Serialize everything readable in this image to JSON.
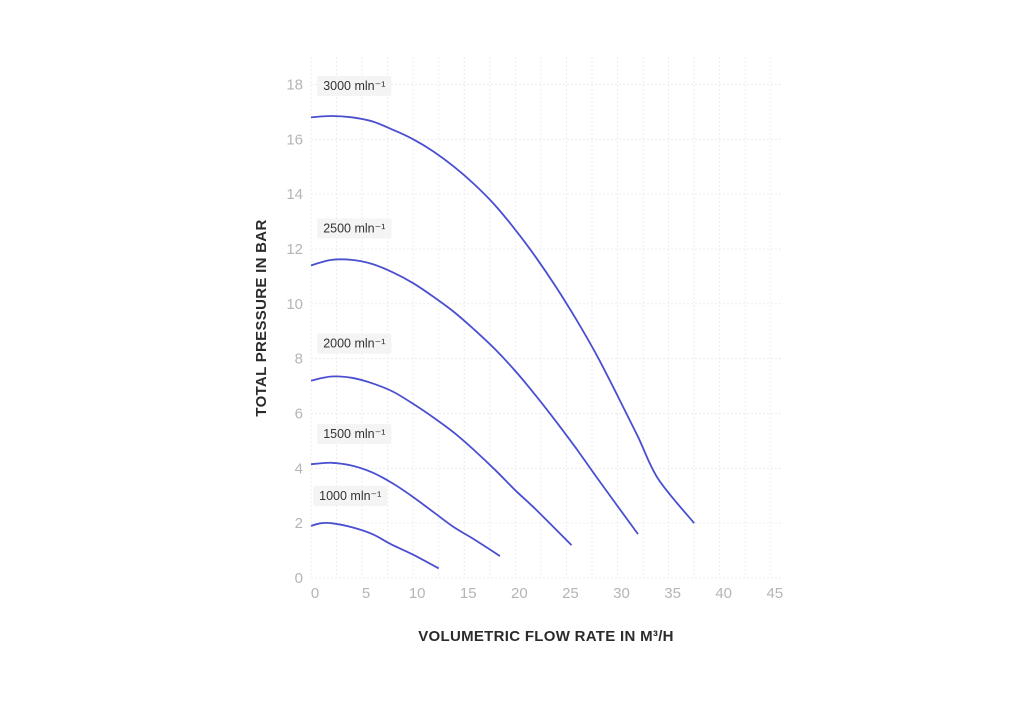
{
  "chart_data": {
    "type": "line",
    "title": "",
    "xlabel": "VOLUMETRIC FLOW RATE IN M³/H",
    "ylabel": "TOTAL PRESSURE IN BAR",
    "xlim": [
      0,
      46
    ],
    "ylim": [
      0,
      19
    ],
    "xticks": [
      0,
      5,
      10,
      15,
      20,
      25,
      30,
      35,
      40,
      45
    ],
    "yticks": [
      0,
      2,
      4,
      6,
      8,
      10,
      12,
      14,
      16,
      18
    ],
    "grid": true,
    "series": [
      {
        "name": "1000 mln⁻¹",
        "color": "#4a4fd0",
        "x": [
          0,
          1,
          2,
          4,
          6,
          8,
          10,
          12.5
        ],
        "y": [
          1.9,
          2.0,
          2.0,
          1.85,
          1.6,
          1.2,
          0.85,
          0.35
        ]
      },
      {
        "name": "1500 mln⁻¹",
        "color": "#4a4fd0",
        "x": [
          0,
          2,
          4,
          6,
          8,
          10,
          12,
          14,
          16,
          18.5
        ],
        "y": [
          4.15,
          4.2,
          4.1,
          3.85,
          3.45,
          2.95,
          2.4,
          1.85,
          1.4,
          0.8
        ]
      },
      {
        "name": "2000 mln⁻¹",
        "color": "#4a4fd0",
        "x": [
          0,
          2,
          4,
          6,
          8,
          10,
          12,
          14,
          16,
          18,
          20,
          22,
          25.5
        ],
        "y": [
          7.2,
          7.35,
          7.3,
          7.1,
          6.8,
          6.35,
          5.85,
          5.3,
          4.65,
          3.95,
          3.2,
          2.5,
          1.2
        ]
      },
      {
        "name": "2500 mln⁻¹",
        "color": "#4a4fd0",
        "x": [
          0,
          2,
          4,
          6,
          8,
          10,
          12,
          14,
          16,
          18,
          20,
          22,
          24,
          26,
          28,
          32
        ],
        "y": [
          11.4,
          11.6,
          11.6,
          11.45,
          11.15,
          10.75,
          10.25,
          9.7,
          9.05,
          8.35,
          7.55,
          6.65,
          5.7,
          4.7,
          3.65,
          1.6
        ]
      },
      {
        "name": "3000 mln⁻¹",
        "color": "#4a4fd0",
        "x": [
          0,
          2,
          4,
          6,
          8,
          10,
          12,
          14,
          16,
          18,
          20,
          22,
          24,
          26,
          28,
          30,
          32,
          34,
          37.5
        ],
        "y": [
          16.8,
          16.85,
          16.8,
          16.65,
          16.35,
          16.0,
          15.55,
          15.0,
          14.35,
          13.6,
          12.7,
          11.7,
          10.6,
          9.4,
          8.1,
          6.65,
          5.15,
          3.6,
          2.0
        ]
      }
    ],
    "annotations": [
      {
        "text": "3000 mln⁻¹",
        "x": 1.0,
        "y": 17.8
      },
      {
        "text": "2500 mln⁻¹",
        "x": 1.0,
        "y": 12.6
      },
      {
        "text": "2000 mln⁻¹",
        "x": 1.0,
        "y": 8.4
      },
      {
        "text": "1500 mln⁻¹",
        "x": 1.0,
        "y": 5.1
      },
      {
        "text": "1000 mln⁻¹",
        "x": 0.6,
        "y": 2.85
      }
    ]
  }
}
